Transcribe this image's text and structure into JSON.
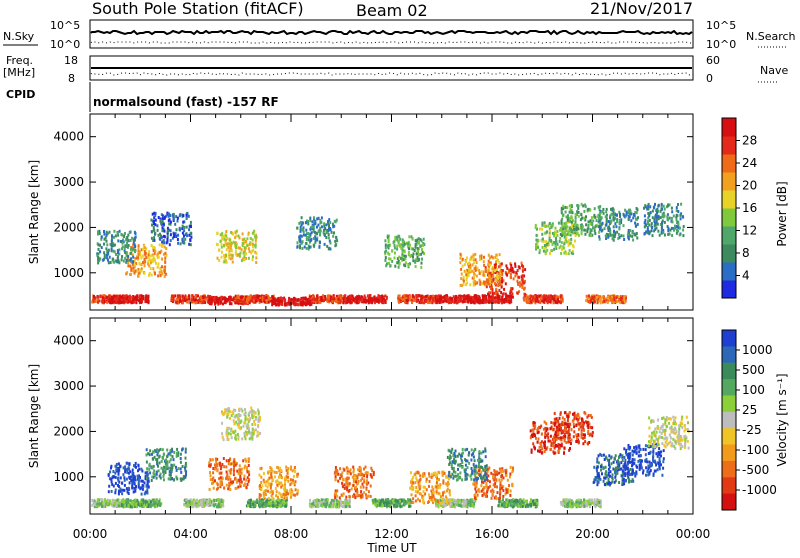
{
  "header": {
    "station": "South Pole Station (fitACF)",
    "beam": "Beam 02",
    "date": "21/Nov/2017"
  },
  "top_panels": {
    "nsky_label": "N.Sky",
    "nsearch_label": "N.Search",
    "nsky_ticks": [
      "10^5",
      "10^0"
    ],
    "nsearch_ticks": [
      "10^5",
      "10^0"
    ],
    "freq_label_line1": "Freq.",
    "freq_label_line2": "[MHz]",
    "freq_ticks": [
      "18",
      "8"
    ],
    "nave_label": "Nave",
    "nave_ticks": [
      "60",
      "0"
    ],
    "cpid_label": "CPID",
    "cpid_text": "normalsound (fast) -157 RF"
  },
  "chart_data": [
    {
      "type": "heatmap",
      "panel": "power",
      "ylabel": "Slant Range [km]",
      "yticks": [
        "1000",
        "2000",
        "3000",
        "4000"
      ],
      "ylim": [
        180,
        4500
      ],
      "xlim": [
        0,
        24
      ],
      "colorbar": {
        "label": "Power [dB]",
        "ticks": [
          "4",
          "8",
          "12",
          "16",
          "20",
          "24",
          "28"
        ],
        "colors": [
          "#1f2be0",
          "#2a6dc4",
          "#3d8a5e",
          "#4fa86a",
          "#7fc93c",
          "#e8d227",
          "#f2a020",
          "#ef6a19",
          "#e42a1a",
          "#d60f12"
        ]
      },
      "blobs": [
        {
          "t": 0.5,
          "r": 450,
          "c": 8
        },
        {
          "t": 1.5,
          "r": 450,
          "c": 9
        },
        {
          "t": 4.0,
          "r": 450,
          "c": 8
        },
        {
          "t": 5.5,
          "r": 420,
          "c": 9
        },
        {
          "t": 6.5,
          "r": 450,
          "c": 8
        },
        {
          "t": 8.0,
          "r": 400,
          "c": 9
        },
        {
          "t": 9.5,
          "r": 450,
          "c": 8
        },
        {
          "t": 11.0,
          "r": 450,
          "c": 9
        },
        {
          "t": 13.0,
          "r": 450,
          "c": 8
        },
        {
          "t": 14.5,
          "r": 450,
          "c": 9
        },
        {
          "t": 16.0,
          "r": 450,
          "c": 9
        },
        {
          "t": 16.5,
          "r": 900,
          "c": 8
        },
        {
          "t": 18.0,
          "r": 450,
          "c": 8
        },
        {
          "t": 20.5,
          "r": 450,
          "c": 7
        },
        {
          "t": 2.2,
          "r": 1300,
          "c": 6
        },
        {
          "t": 5.8,
          "r": 1600,
          "c": 5
        },
        {
          "t": 15.5,
          "r": 1100,
          "c": 6
        },
        {
          "t": 18.5,
          "r": 1800,
          "c": 4
        },
        {
          "t": 19.5,
          "r": 2200,
          "c": 3
        },
        {
          "t": 21.0,
          "r": 2100,
          "c": 2
        },
        {
          "t": 1.0,
          "r": 1600,
          "c": 2
        },
        {
          "t": 3.2,
          "r": 2000,
          "c": 1
        },
        {
          "t": 9.0,
          "r": 1900,
          "c": 2
        },
        {
          "t": 12.5,
          "r": 1500,
          "c": 3
        },
        {
          "t": 22.8,
          "r": 2200,
          "c": 2
        }
      ]
    },
    {
      "type": "heatmap",
      "panel": "velocity",
      "ylabel": "Slant Range [km]",
      "yticks": [
        "1000",
        "2000",
        "3000",
        "4000"
      ],
      "ylim": [
        180,
        4500
      ],
      "xlim": [
        0,
        24
      ],
      "xlabel": "Time UT",
      "xticks": [
        "00:00",
        "04:00",
        "08:00",
        "12:00",
        "16:00",
        "20:00",
        "00:00"
      ],
      "colorbar": {
        "label": "Velocity [m s⁻¹]",
        "ticks": [
          "1000",
          "500",
          "100",
          "25",
          "-25",
          "-100",
          "-500",
          "-1000"
        ],
        "colors": [
          "#1f3fd0",
          "#2c67b8",
          "#3b8a5a",
          "#55a860",
          "#8ccf3a",
          "#bdbdbd",
          "#f0c326",
          "#f29a1c",
          "#ee6d19",
          "#e33a16",
          "#d41010"
        ]
      },
      "blobs": [
        {
          "t": 0.5,
          "r": 450,
          "c": 4
        },
        {
          "t": 2.0,
          "r": 450,
          "c": 3
        },
        {
          "t": 4.5,
          "r": 450,
          "c": 4
        },
        {
          "t": 7.0,
          "r": 450,
          "c": 3
        },
        {
          "t": 9.5,
          "r": 450,
          "c": 4
        },
        {
          "t": 12.0,
          "r": 450,
          "c": 3
        },
        {
          "t": 14.5,
          "r": 450,
          "c": 4
        },
        {
          "t": 17.0,
          "r": 450,
          "c": 3
        },
        {
          "t": 19.5,
          "r": 450,
          "c": 4
        },
        {
          "t": 1.5,
          "r": 1000,
          "c": 0
        },
        {
          "t": 3.0,
          "r": 1300,
          "c": 2
        },
        {
          "t": 5.5,
          "r": 1100,
          "c": 8
        },
        {
          "t": 7.5,
          "r": 900,
          "c": 7
        },
        {
          "t": 10.5,
          "r": 900,
          "c": 8
        },
        {
          "t": 13.5,
          "r": 800,
          "c": 7
        },
        {
          "t": 16.0,
          "r": 900,
          "c": 8
        },
        {
          "t": 18.3,
          "r": 1900,
          "c": 9
        },
        {
          "t": 19.2,
          "r": 2100,
          "c": 9
        },
        {
          "t": 20.8,
          "r": 1200,
          "c": 1
        },
        {
          "t": 22.0,
          "r": 1400,
          "c": 0
        },
        {
          "t": 23.0,
          "r": 2000,
          "c": 5
        },
        {
          "t": 6.0,
          "r": 2200,
          "c": 5
        },
        {
          "t": 15.0,
          "r": 1300,
          "c": 2
        }
      ]
    }
  ]
}
